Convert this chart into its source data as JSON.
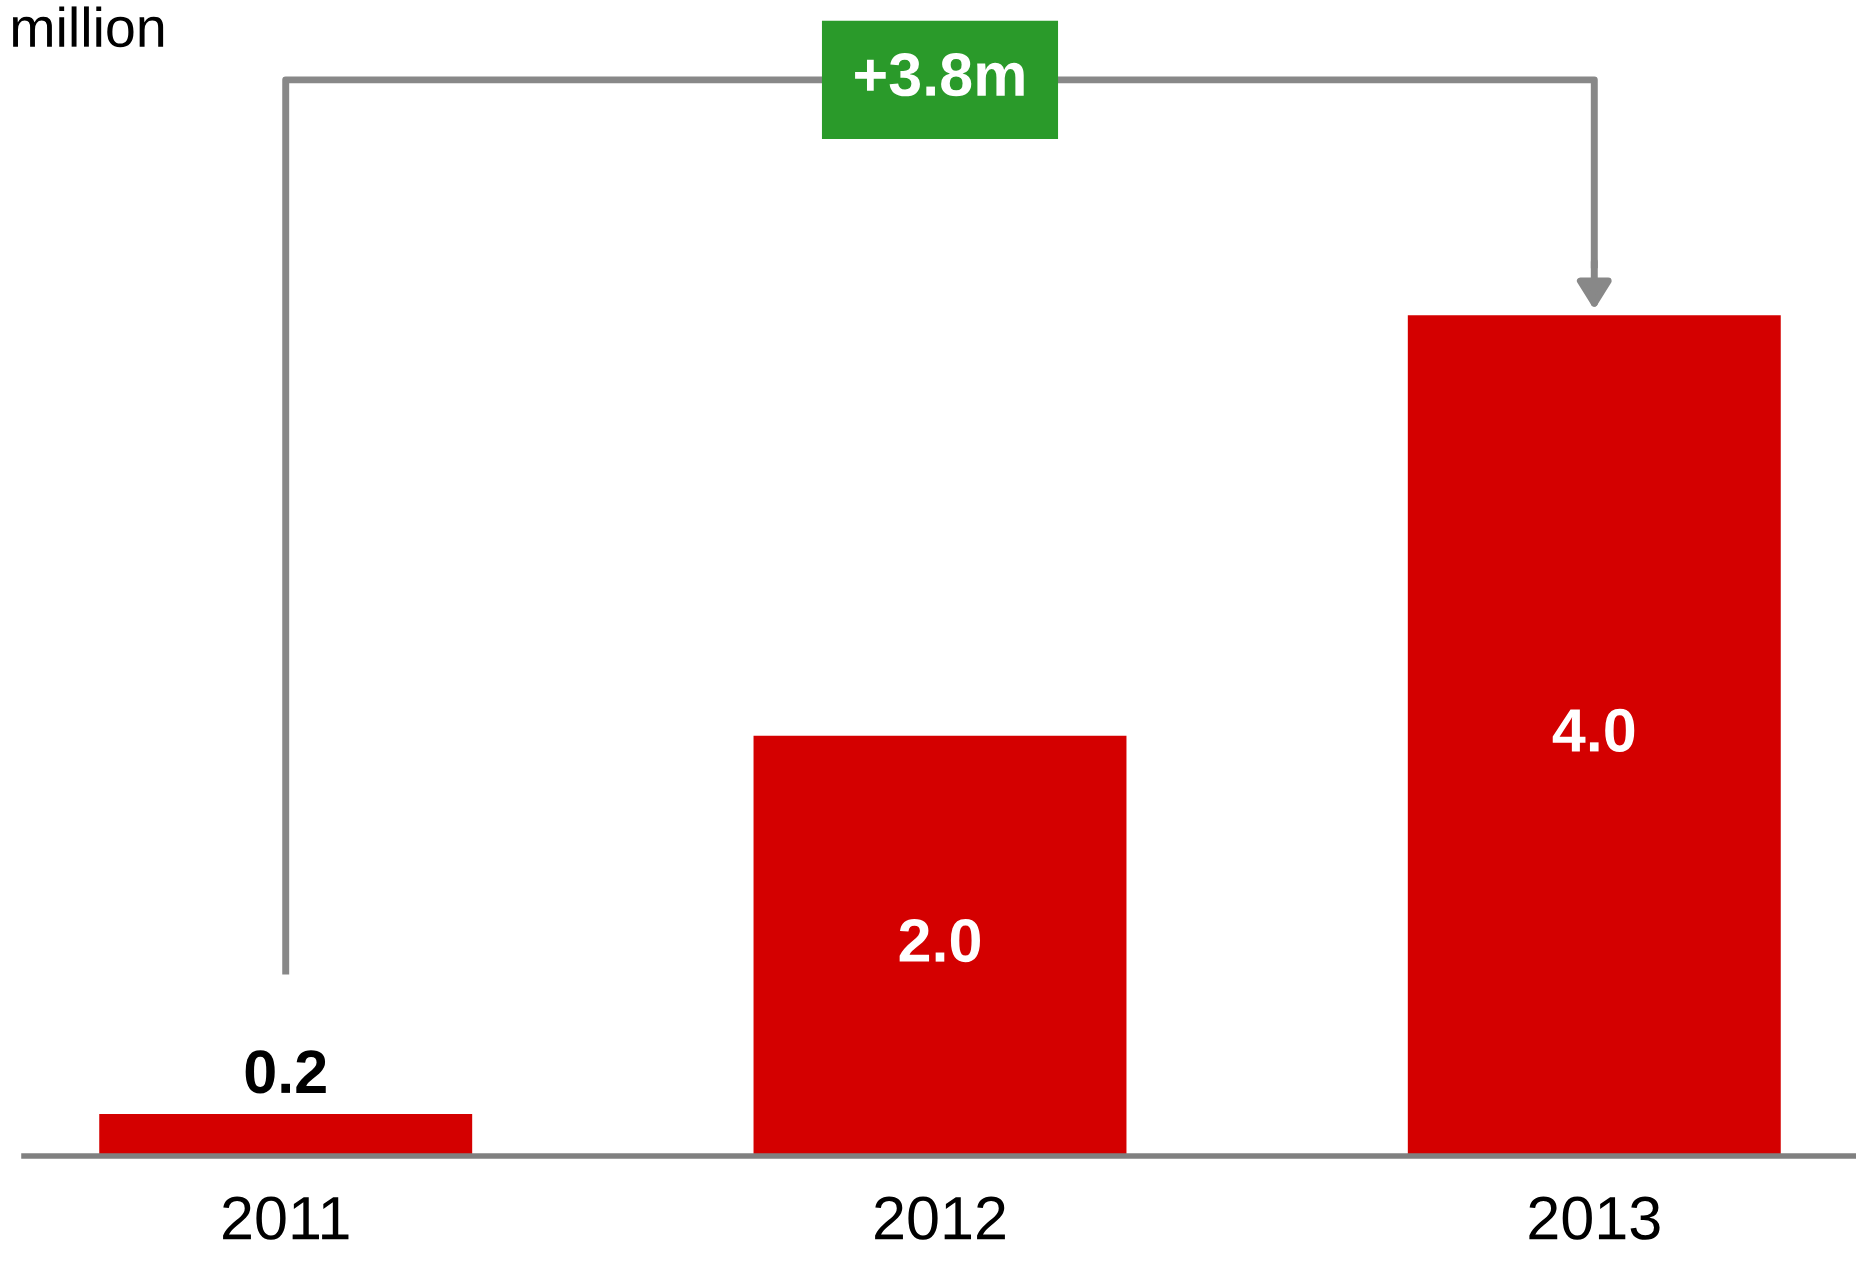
{
  "chart_data": {
    "type": "bar",
    "ylabel": "million",
    "categories": [
      "2011",
      "2012",
      "2013"
    ],
    "values": [
      0.2,
      2.0,
      4.0
    ],
    "value_labels": [
      "0.2",
      "2.0",
      "4.0"
    ],
    "color": "#d40000",
    "annotations": [
      "+3.8m"
    ],
    "grid": false
  }
}
